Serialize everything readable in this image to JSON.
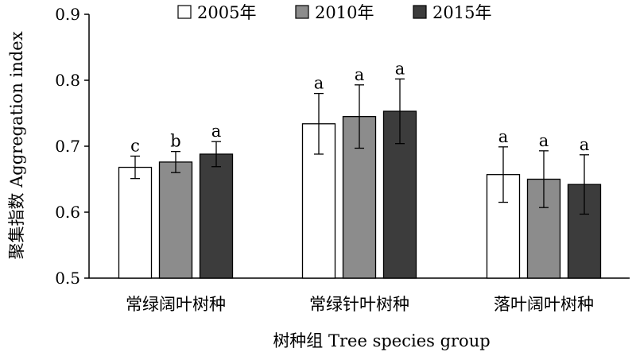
{
  "chart_data": {
    "type": "bar",
    "title": "",
    "xlabel": "树种组 Tree species group",
    "ylabel": "聚集指数 Aggregation index",
    "ylim": [
      0.5,
      0.9
    ],
    "yticks": [
      "0.5",
      "0.6",
      "0.7",
      "0.8",
      "0.9"
    ],
    "grid": false,
    "legend_position": "top",
    "categories": [
      "常绿阔叶树种",
      "常绿针叶树种",
      "落叶阔叶树种"
    ],
    "series": [
      {
        "name": "2005年",
        "color": "#ffffff",
        "values": [
          0.668,
          0.734,
          0.657
        ],
        "errors": [
          0.017,
          0.046,
          0.042
        ],
        "sig_letters": [
          "c",
          "a",
          "a"
        ]
      },
      {
        "name": "2010年",
        "color": "#8c8c8c",
        "values": [
          0.676,
          0.745,
          0.65
        ],
        "errors": [
          0.016,
          0.048,
          0.043
        ],
        "sig_letters": [
          "b",
          "a",
          "a"
        ]
      },
      {
        "name": "2015年",
        "color": "#3c3c3c",
        "values": [
          0.688,
          0.753,
          0.642
        ],
        "errors": [
          0.019,
          0.049,
          0.045
        ],
        "sig_letters": [
          "a",
          "a",
          "a"
        ]
      }
    ]
  }
}
